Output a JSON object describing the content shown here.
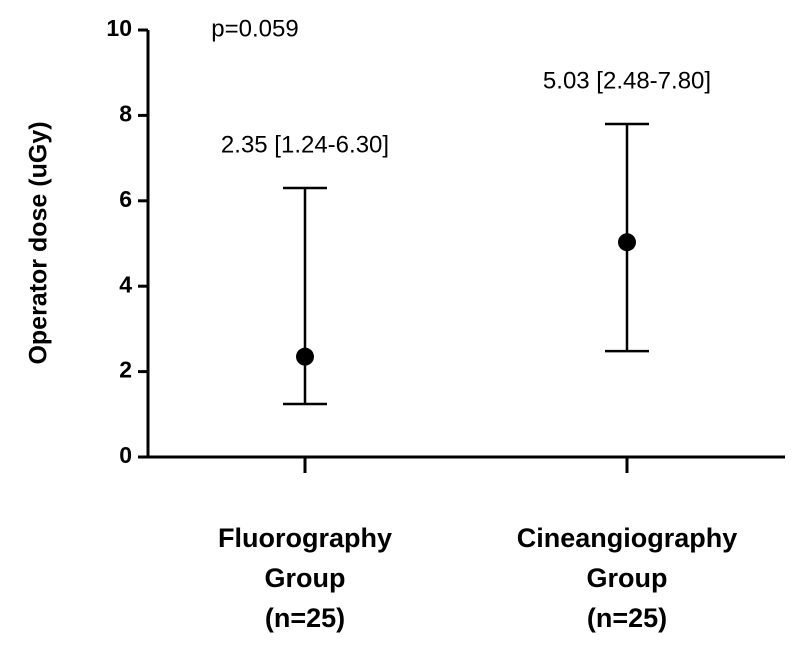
{
  "chart_data": {
    "type": "errorbar",
    "ylabel": "Operator dose (uGy)",
    "annotation": "p=0.059",
    "categories": [
      [
        "Fluorography",
        "Group",
        "(n=25)"
      ],
      [
        "Cineangiography",
        "Group",
        "(n=25)"
      ]
    ],
    "values": [
      2.35,
      5.03
    ],
    "low": [
      1.24,
      2.48
    ],
    "high": [
      6.3,
      7.8
    ],
    "value_labels": [
      "2.35 [1.24-6.30]",
      "5.03 [2.48-7.80]"
    ],
    "color": "#000000",
    "ylim": [
      0,
      10
    ],
    "yticks": [
      0,
      2,
      4,
      6,
      8,
      10
    ]
  }
}
